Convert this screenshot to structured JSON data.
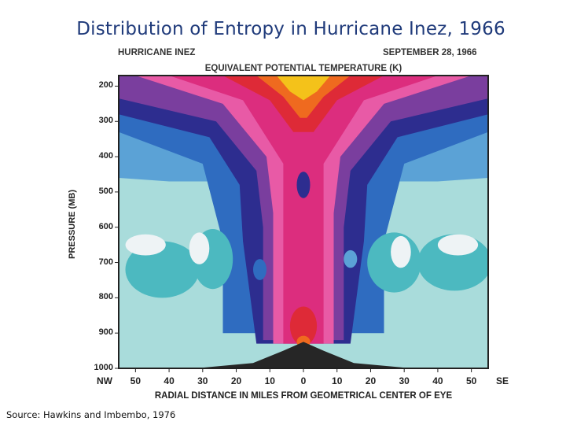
{
  "slide": {
    "title": "Distribution of Entropy in Hurricane Inez, 1966",
    "source": "Source: Hawkins and Imbembo, 1976"
  },
  "chart_data": {
    "type": "heatmap",
    "header_left": "HURRICANE INEZ",
    "header_right": "SEPTEMBER 28, 1966",
    "title": "EQUIVALENT POTENTIAL TEMPERATURE (K)",
    "ylabel": "PRESSURE (MB)",
    "xlabel": "RADIAL DISTANCE IN MILES FROM GEOMETRICAL CENTER OF EYE",
    "x_left_label": "NW",
    "x_right_label": "SE",
    "x_ticks": [
      "50",
      "40",
      "30",
      "20",
      "10",
      "0",
      "10",
      "20",
      "30",
      "40",
      "50"
    ],
    "x_values": [
      -50,
      -40,
      -30,
      -20,
      -10,
      0,
      10,
      20,
      30,
      40,
      50
    ],
    "y_ticks": [
      "200",
      "300",
      "400",
      "500",
      "600",
      "700",
      "800",
      "900",
      "1000"
    ],
    "y_values": [
      200,
      300,
      400,
      500,
      600,
      700,
      800,
      900,
      1000
    ],
    "xlim": [
      -55,
      55
    ],
    "ylim": [
      1000,
      170
    ],
    "colors": {
      "warm_core": "#f4c21a",
      "orange": "#ef6a1f",
      "red": "#de2a37",
      "magenta": "#dc2d7e",
      "pink": "#e85aa6",
      "purple": "#7a3e9e",
      "indigo": "#2d2d8f",
      "blue": "#2f6cc0",
      "light_blue": "#5ba2d6",
      "teal": "#4cb9c0",
      "pale_teal": "#a9dcdb",
      "near_white": "#eef3f5",
      "terrain": "#262626"
    }
  }
}
